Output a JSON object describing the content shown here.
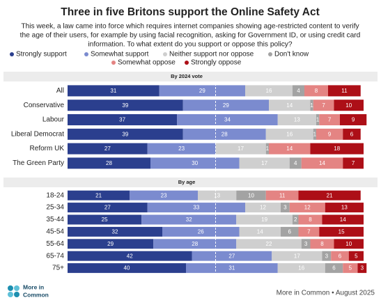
{
  "chart_data": [
    {
      "type": "bar",
      "orientation": "horizontal",
      "stacked": true,
      "title": "Three in five Britons support the Online Safety Act",
      "subtitle": [
        "This week, a law came into force which requires internet companies showing age-restricted content to verify",
        "the age of their users, for example by using facial recognition, asking for Government ID, or using credit card",
        "information. To what extent do you support or oppose this policy?"
      ],
      "panel_title": "By 2024 vote",
      "categories": [
        "All",
        "Conservative",
        "Labour",
        "Liberal Democrat",
        "Reform UK",
        "The Green Party"
      ],
      "xlim": [
        0,
        100
      ],
      "reference_line": 50,
      "series": [
        {
          "name": "Strongly support",
          "color": "#2b3f8e",
          "values": [
            31,
            39,
            37,
            39,
            27,
            28
          ]
        },
        {
          "name": "Somewhat support",
          "color": "#7b8bcf",
          "values": [
            29,
            29,
            34,
            28,
            23,
            30
          ]
        },
        {
          "name": "Neither support nor oppose",
          "color": "#cfcfcf",
          "values": [
            16,
            14,
            13,
            16,
            17,
            17
          ]
        },
        {
          "name": "Don't know",
          "color": "#a3a3a3",
          "values": [
            4,
            1,
            1,
            1,
            1,
            4
          ]
        },
        {
          "name": "Somewhat oppose",
          "color": "#e48483",
          "values": [
            8,
            7,
            7,
            9,
            14,
            14
          ]
        },
        {
          "name": "Strongly oppose",
          "color": "#ad0f17",
          "values": [
            11,
            10,
            9,
            6,
            18,
            7
          ]
        }
      ]
    },
    {
      "type": "bar",
      "orientation": "horizontal",
      "stacked": true,
      "panel_title": "By age",
      "categories": [
        "18-24",
        "25-34",
        "35-44",
        "45-54",
        "55-64",
        "65-74",
        "75+"
      ],
      "xlim": [
        0,
        100
      ],
      "reference_line": 50,
      "series": [
        {
          "color": "#2b3f8e",
          "values": [
            21,
            27,
            25,
            32,
            29,
            42,
            40
          ]
        },
        {
          "color": "#7b8bcf",
          "values": [
            23,
            33,
            32,
            26,
            28,
            27,
            31
          ]
        },
        {
          "color": "#cfcfcf",
          "values": [
            13,
            12,
            19,
            14,
            22,
            17,
            16
          ]
        },
        {
          "color": "#a3a3a3",
          "values": [
            10,
            3,
            2,
            6,
            3,
            3,
            6
          ]
        },
        {
          "color": "#e48483",
          "values": [
            11,
            12,
            8,
            7,
            8,
            6,
            5
          ]
        },
        {
          "color": "#ad0f17",
          "values": [
            21,
            13,
            14,
            15,
            10,
            5,
            3
          ]
        }
      ]
    }
  ],
  "footer": {
    "logo": [
      "More in",
      "Common"
    ],
    "source": "More in Common • August 2025"
  }
}
